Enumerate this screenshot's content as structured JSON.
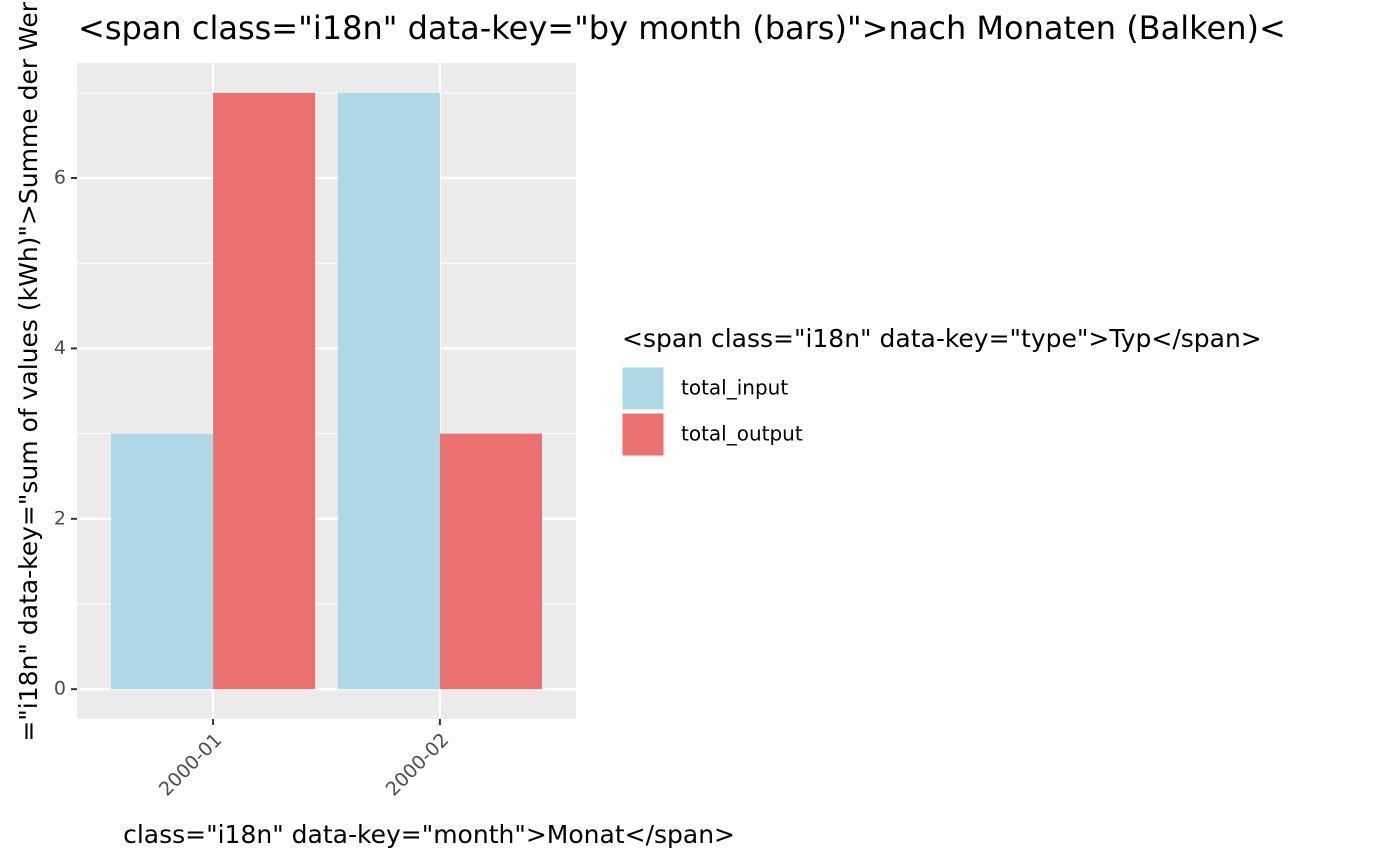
{
  "chart_data": {
    "type": "bar",
    "title": "<span class=\"i18n\" data-key=\"by month (bars)\">nach Monaten (Balken)<",
    "x_label": "class=\"i18n\" data-key=\"month\">Monat</span>",
    "y_label": "=\"i18n\" data-key=\"sum of values (kWh)\">Summe der Wer",
    "legend_title": "<span class=\"i18n\" data-key=\"type\">Typ</span>",
    "legend": "right",
    "grid": true,
    "categories": [
      "2000-01",
      "2000-02"
    ],
    "series": [
      {
        "name": "total_input",
        "color": "#add8e6",
        "values": [
          3,
          7
        ]
      },
      {
        "name": "total_output",
        "color": "#eb7070",
        "values": [
          7,
          3
        ]
      }
    ],
    "ylim": [
      -0.35,
      7.35
    ],
    "yticks": [
      0,
      2,
      4,
      6
    ]
  }
}
